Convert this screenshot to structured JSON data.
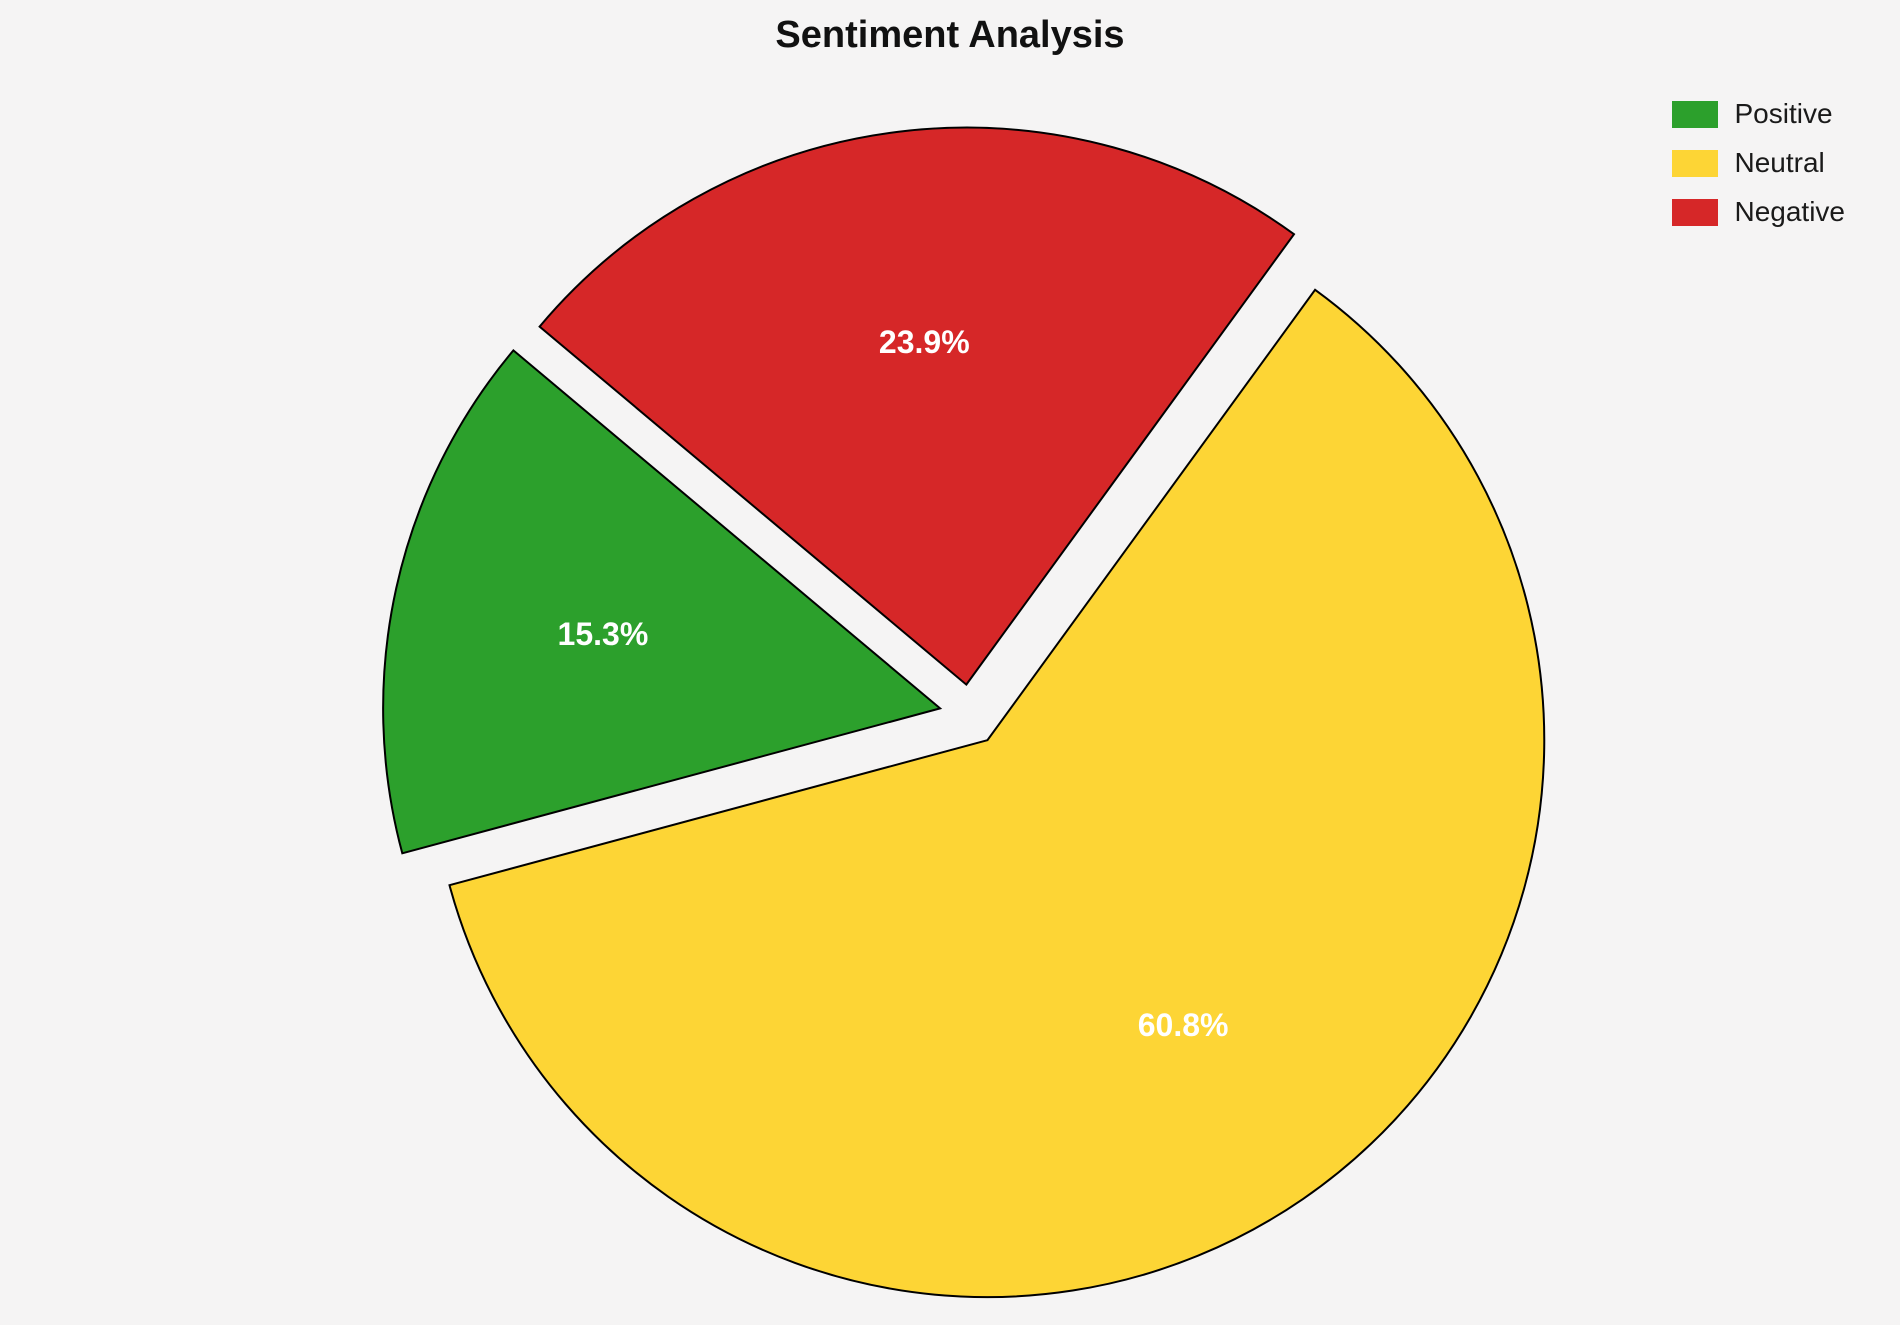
{
  "page": {
    "background": "#f5f4f4"
  },
  "chart_data": {
    "type": "pie",
    "title": "Sentiment Analysis",
    "labels": [
      "Positive",
      "Neutral",
      "Negative"
    ],
    "values": [
      15.3,
      60.8,
      23.9
    ],
    "percent_labels": [
      "15.3%",
      "60.8%",
      "23.9%"
    ],
    "colors": [
      "#2ca02c",
      "#FDD535",
      "#d62728"
    ],
    "edge_color": "#000000",
    "start_angle": 140,
    "direction": "counterclockwise",
    "explode": 0.055,
    "label_radius": 0.62,
    "legend_position": "upper right",
    "legend_entries": [
      "Positive",
      "Neutral",
      "Negative"
    ],
    "grid": false
  }
}
